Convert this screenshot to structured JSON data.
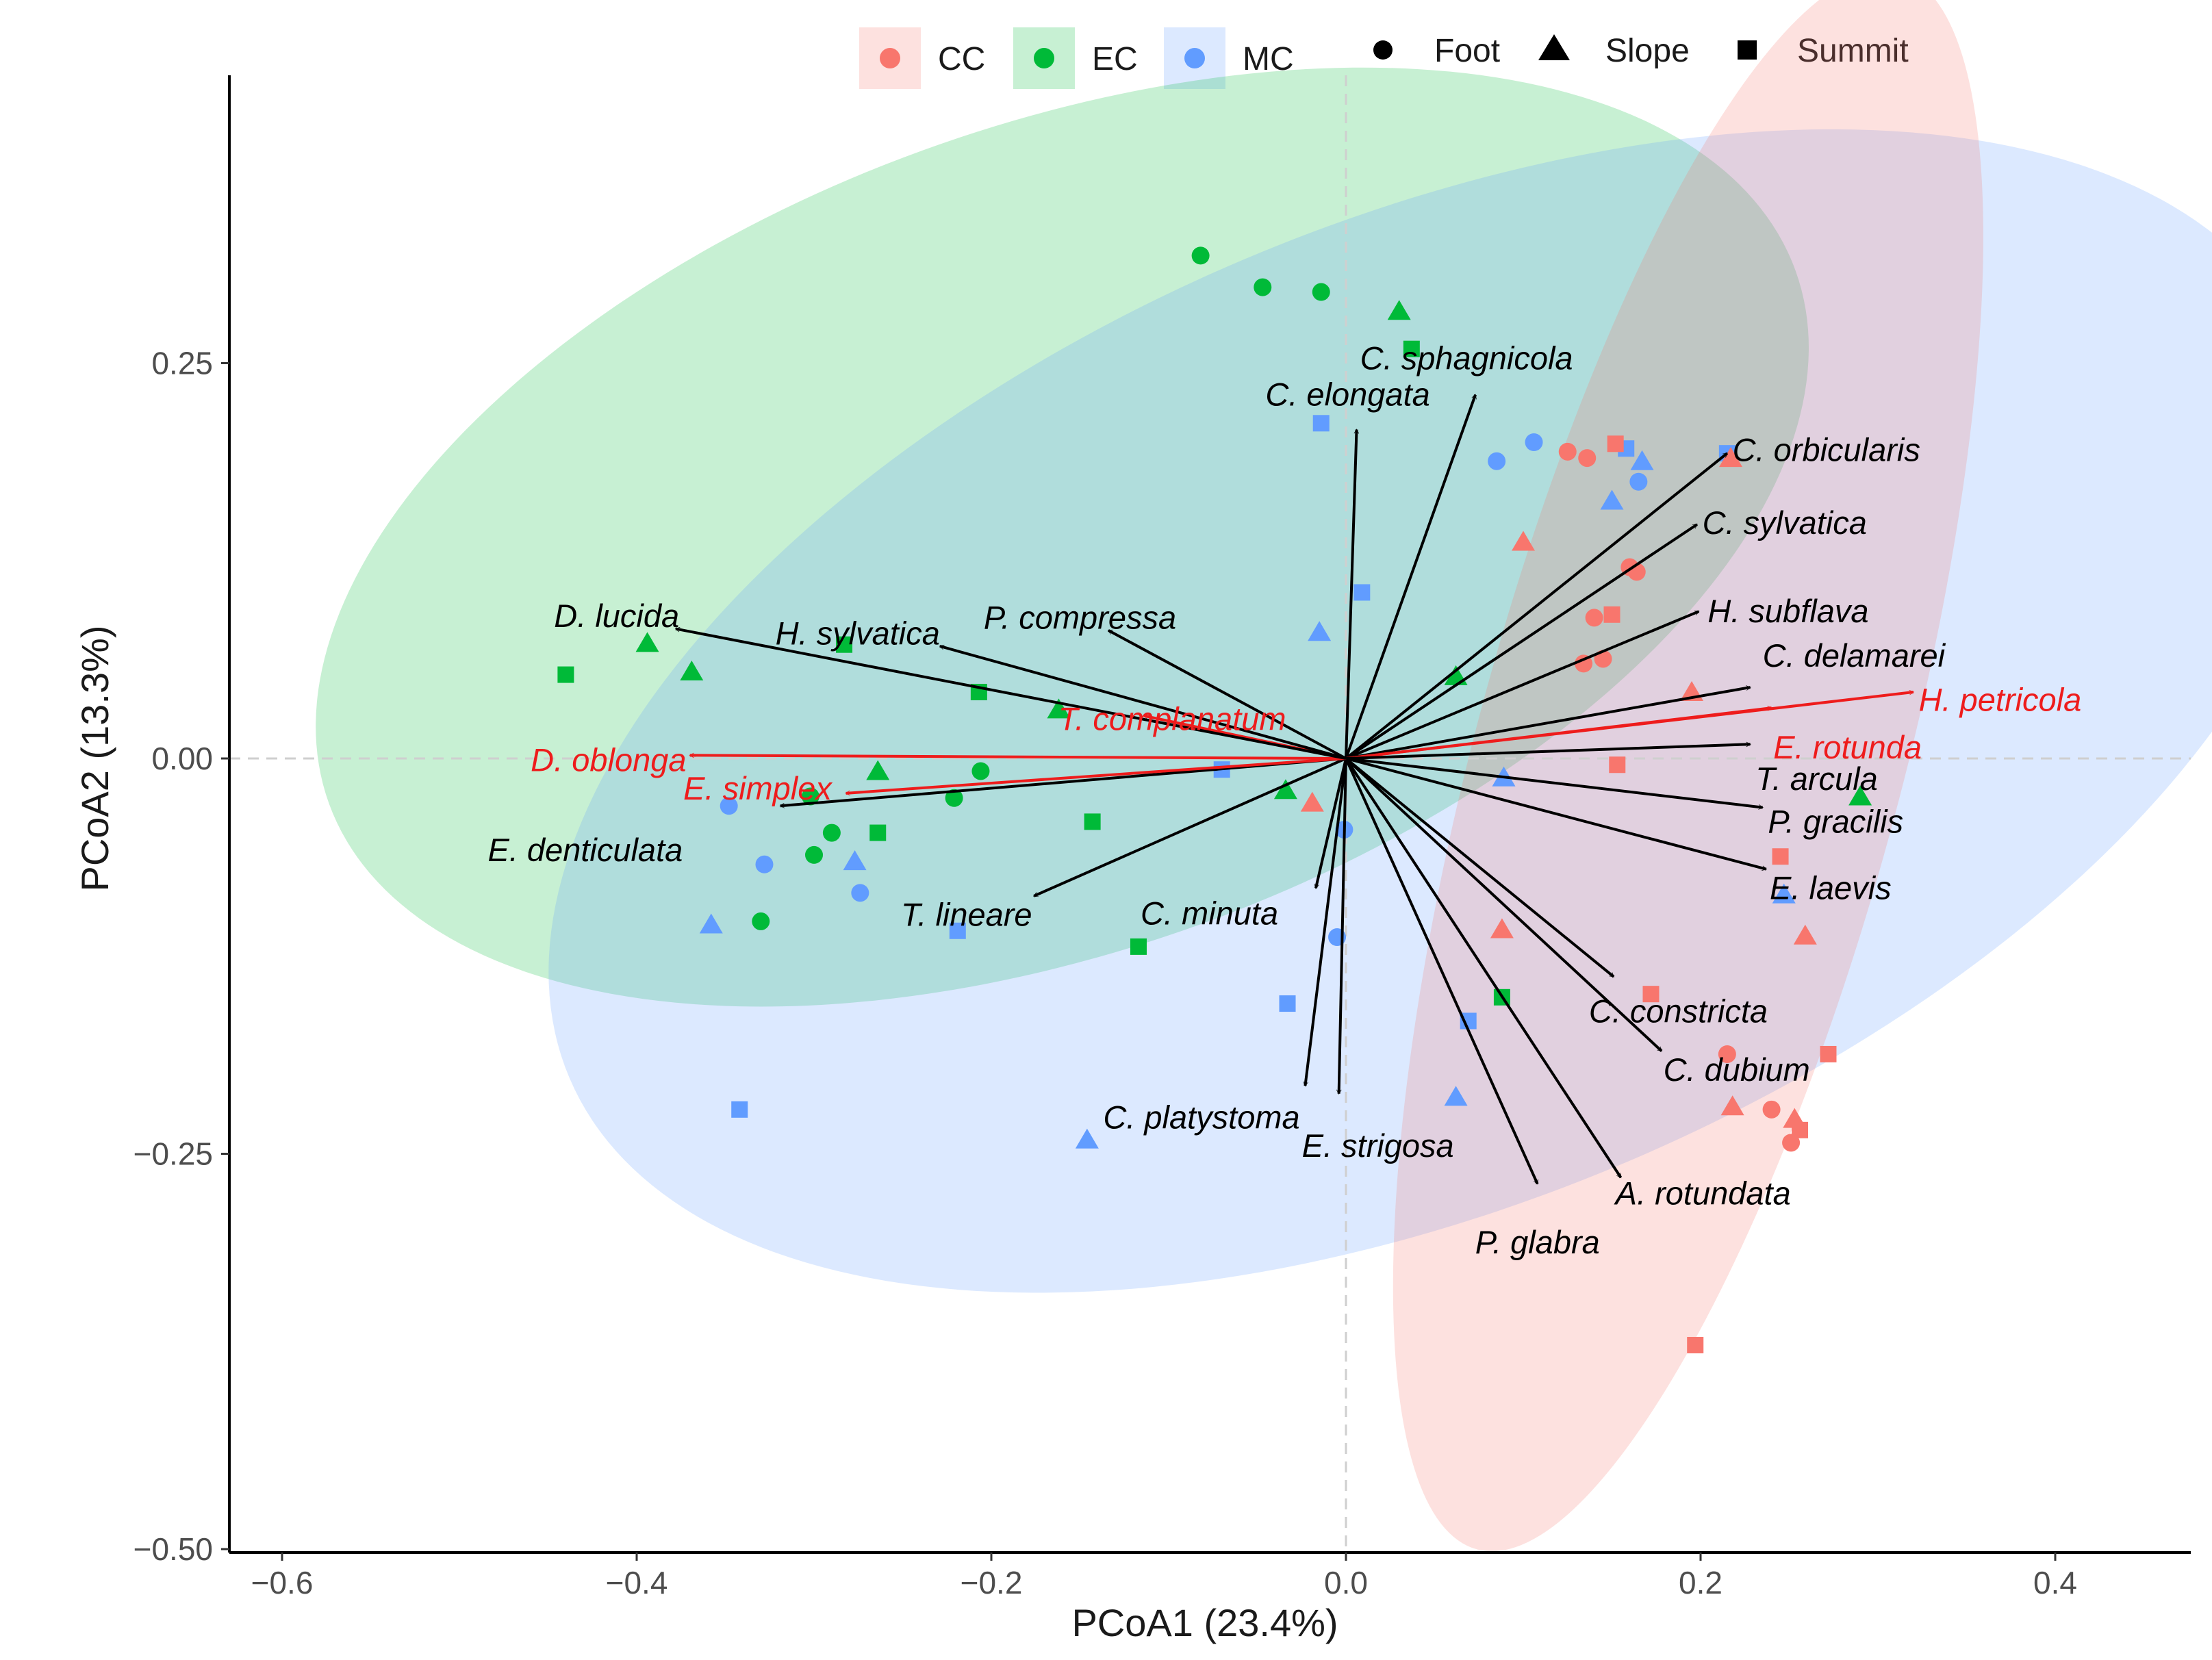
{
  "chart_data": {
    "type": "scatter",
    "subtype": "PCoA biplot with group ellipses and species vectors",
    "title": "",
    "xlabel": "PCoA1 (23.4%)",
    "ylabel": "PCoA2 (13.3%)",
    "xlim": [
      -0.625,
      0.475
    ],
    "ylim": [
      -0.505,
      0.43
    ],
    "xticks": [
      -0.6,
      -0.4,
      -0.2,
      0.0,
      0.2,
      0.4
    ],
    "xtick_labels": [
      "−0.6",
      "−0.4",
      "−0.2",
      "0.0",
      "0.2",
      "0.4"
    ],
    "yticks": [
      0.25,
      0.0,
      -0.25,
      -0.5
    ],
    "ytick_labels": [
      "0.25",
      "0.00",
      "−0.25",
      "−0.50"
    ],
    "reference_lines": {
      "x": 0,
      "y": 0,
      "style": "dashed"
    },
    "legend": {
      "position": "top",
      "groups": [
        {
          "name": "CC",
          "color": "#F8766D"
        },
        {
          "name": "EC",
          "color": "#00BA38"
        },
        {
          "name": "MC",
          "color": "#619CFF"
        }
      ],
      "shapes": [
        {
          "name": "Foot",
          "shape": "circle"
        },
        {
          "name": "Slope",
          "shape": "triangle"
        },
        {
          "name": "Summit",
          "shape": "square"
        }
      ]
    },
    "ellipses": [
      {
        "group": "EC",
        "center": [
          -0.16,
          0.14
        ],
        "semi_axes": [
          0.44,
          0.26
        ],
        "angle_deg": 20
      },
      {
        "group": "MC",
        "center": [
          0.05,
          0.03
        ],
        "semi_axes": [
          0.53,
          0.31
        ],
        "angle_deg": 23
      },
      {
        "group": "CC",
        "center": [
          0.193,
          -0.002
        ],
        "semi_axes": [
          0.46,
          0.135
        ],
        "angle_deg": 75
      }
    ],
    "points": [
      {
        "group": "EC",
        "shape": "Foot",
        "x": -0.082,
        "y": 0.318
      },
      {
        "group": "EC",
        "shape": "Foot",
        "x": -0.047,
        "y": 0.298
      },
      {
        "group": "EC",
        "shape": "Foot",
        "x": -0.014,
        "y": 0.295
      },
      {
        "group": "EC",
        "shape": "Slope",
        "x": 0.03,
        "y": 0.283
      },
      {
        "group": "EC",
        "shape": "Summit",
        "x": 0.037,
        "y": 0.259
      },
      {
        "group": "EC",
        "shape": "Summit",
        "x": -0.44,
        "y": 0.053
      },
      {
        "group": "EC",
        "shape": "Slope",
        "x": -0.394,
        "y": 0.073
      },
      {
        "group": "EC",
        "shape": "Slope",
        "x": -0.369,
        "y": 0.055
      },
      {
        "group": "EC",
        "shape": "Summit",
        "x": -0.283,
        "y": 0.072
      },
      {
        "group": "EC",
        "shape": "Summit",
        "x": -0.207,
        "y": 0.042
      },
      {
        "group": "EC",
        "shape": "Slope",
        "x": -0.162,
        "y": 0.031
      },
      {
        "group": "EC",
        "shape": "Slope",
        "x": 0.062,
        "y": 0.052
      },
      {
        "group": "EC",
        "shape": "Slope",
        "x": -0.264,
        "y": -0.008
      },
      {
        "group": "EC",
        "shape": "Foot",
        "x": -0.206,
        "y": -0.008
      },
      {
        "group": "EC",
        "shape": "Foot",
        "x": -0.302,
        "y": -0.024
      },
      {
        "group": "EC",
        "shape": "Foot",
        "x": -0.221,
        "y": -0.025
      },
      {
        "group": "EC",
        "shape": "Foot",
        "x": -0.29,
        "y": -0.047
      },
      {
        "group": "EC",
        "shape": "Summit",
        "x": -0.264,
        "y": -0.047
      },
      {
        "group": "EC",
        "shape": "Foot",
        "x": -0.3,
        "y": -0.061
      },
      {
        "group": "EC",
        "shape": "Summit",
        "x": -0.143,
        "y": -0.04
      },
      {
        "group": "EC",
        "shape": "Slope",
        "x": -0.034,
        "y": -0.02
      },
      {
        "group": "EC",
        "shape": "Foot",
        "x": -0.33,
        "y": -0.103
      },
      {
        "group": "EC",
        "shape": "Summit",
        "x": -0.117,
        "y": -0.119
      },
      {
        "group": "EC",
        "shape": "Summit",
        "x": 0.088,
        "y": -0.151
      },
      {
        "group": "EC",
        "shape": "Slope",
        "x": 0.29,
        "y": -0.024
      },
      {
        "group": "MC",
        "shape": "Summit",
        "x": -0.014,
        "y": 0.212
      },
      {
        "group": "MC",
        "shape": "Summit",
        "x": 0.009,
        "y": 0.105
      },
      {
        "group": "MC",
        "shape": "Slope",
        "x": -0.015,
        "y": 0.08
      },
      {
        "group": "MC",
        "shape": "Foot",
        "x": 0.085,
        "y": 0.188
      },
      {
        "group": "MC",
        "shape": "Foot",
        "x": 0.106,
        "y": 0.2
      },
      {
        "group": "MC",
        "shape": "Summit",
        "x": 0.158,
        "y": 0.196
      },
      {
        "group": "MC",
        "shape": "Slope",
        "x": 0.167,
        "y": 0.188
      },
      {
        "group": "MC",
        "shape": "Foot",
        "x": 0.165,
        "y": 0.175
      },
      {
        "group": "MC",
        "shape": "Slope",
        "x": 0.15,
        "y": 0.163
      },
      {
        "group": "MC",
        "shape": "Summit",
        "x": 0.215,
        "y": 0.193
      },
      {
        "group": "MC",
        "shape": "Summit",
        "x": -0.07,
        "y": -0.007
      },
      {
        "group": "MC",
        "shape": "Slope",
        "x": 0.089,
        "y": -0.012
      },
      {
        "group": "MC",
        "shape": "Foot",
        "x": -0.348,
        "y": -0.03
      },
      {
        "group": "MC",
        "shape": "Foot",
        "x": -0.328,
        "y": -0.067
      },
      {
        "group": "MC",
        "shape": "Slope",
        "x": -0.277,
        "y": -0.065
      },
      {
        "group": "MC",
        "shape": "Foot",
        "x": -0.274,
        "y": -0.085
      },
      {
        "group": "MC",
        "shape": "Slope",
        "x": -0.358,
        "y": -0.105
      },
      {
        "group": "MC",
        "shape": "Summit",
        "x": -0.219,
        "y": -0.109
      },
      {
        "group": "MC",
        "shape": "Foot",
        "x": -0.001,
        "y": -0.045
      },
      {
        "group": "MC",
        "shape": "Foot",
        "x": -0.005,
        "y": -0.113
      },
      {
        "group": "MC",
        "shape": "Summit",
        "x": -0.033,
        "y": -0.155
      },
      {
        "group": "MC",
        "shape": "Summit",
        "x": 0.069,
        "y": -0.166
      },
      {
        "group": "MC",
        "shape": "Slope",
        "x": 0.062,
        "y": -0.214
      },
      {
        "group": "MC",
        "shape": "Summit",
        "x": -0.342,
        "y": -0.222
      },
      {
        "group": "MC",
        "shape": "Slope",
        "x": -0.146,
        "y": -0.241
      },
      {
        "group": "MC",
        "shape": "Slope",
        "x": 0.247,
        "y": -0.086
      },
      {
        "group": "CC",
        "shape": "Foot",
        "x": 0.125,
        "y": 0.194
      },
      {
        "group": "CC",
        "shape": "Foot",
        "x": 0.136,
        "y": 0.19
      },
      {
        "group": "CC",
        "shape": "Summit",
        "x": 0.152,
        "y": 0.199
      },
      {
        "group": "CC",
        "shape": "Slope",
        "x": 0.217,
        "y": 0.19
      },
      {
        "group": "CC",
        "shape": "Slope",
        "x": 0.1,
        "y": 0.137
      },
      {
        "group": "CC",
        "shape": "Foot",
        "x": 0.16,
        "y": 0.121
      },
      {
        "group": "CC",
        "shape": "Foot",
        "x": 0.164,
        "y": 0.118
      },
      {
        "group": "CC",
        "shape": "Foot",
        "x": 0.14,
        "y": 0.089
      },
      {
        "group": "CC",
        "shape": "Summit",
        "x": 0.15,
        "y": 0.091
      },
      {
        "group": "CC",
        "shape": "Foot",
        "x": 0.134,
        "y": 0.06
      },
      {
        "group": "CC",
        "shape": "Foot",
        "x": 0.145,
        "y": 0.063
      },
      {
        "group": "CC",
        "shape": "Slope",
        "x": 0.195,
        "y": 0.042
      },
      {
        "group": "CC",
        "shape": "Summit",
        "x": 0.153,
        "y": -0.004
      },
      {
        "group": "CC",
        "shape": "Slope",
        "x": -0.019,
        "y": -0.028
      },
      {
        "group": "CC",
        "shape": "Summit",
        "x": 0.245,
        "y": -0.062
      },
      {
        "group": "CC",
        "shape": "Slope",
        "x": 0.088,
        "y": -0.108
      },
      {
        "group": "CC",
        "shape": "Slope",
        "x": 0.259,
        "y": -0.112
      },
      {
        "group": "CC",
        "shape": "Summit",
        "x": 0.172,
        "y": -0.149
      },
      {
        "group": "CC",
        "shape": "Foot",
        "x": 0.215,
        "y": -0.187
      },
      {
        "group": "CC",
        "shape": "Summit",
        "x": 0.272,
        "y": -0.187
      },
      {
        "group": "CC",
        "shape": "Slope",
        "x": 0.218,
        "y": -0.22
      },
      {
        "group": "CC",
        "shape": "Foot",
        "x": 0.24,
        "y": -0.222
      },
      {
        "group": "CC",
        "shape": "Slope",
        "x": 0.253,
        "y": -0.228
      },
      {
        "group": "CC",
        "shape": "Summit",
        "x": 0.256,
        "y": -0.235
      },
      {
        "group": "CC",
        "shape": "Foot",
        "x": 0.251,
        "y": -0.243
      },
      {
        "group": "CC",
        "shape": "Summit",
        "x": 0.197,
        "y": -0.371
      }
    ],
    "vectors": [
      {
        "label": "C. sphagnicola",
        "x": 0.073,
        "y": 0.23,
        "color": "#000000"
      },
      {
        "label": "C. elongata",
        "x": 0.006,
        "y": 0.208,
        "color": "#000000"
      },
      {
        "label": "C. orbicularis",
        "x": 0.215,
        "y": 0.193,
        "color": "#000000"
      },
      {
        "label": "C. sylvatica",
        "x": 0.198,
        "y": 0.148,
        "color": "#000000"
      },
      {
        "label": "H. subflava",
        "x": 0.199,
        "y": 0.093,
        "color": "#000000"
      },
      {
        "label": "C. delamarei",
        "x": 0.228,
        "y": 0.045,
        "color": "#000000"
      },
      {
        "label": "H. petricola",
        "x": 0.32,
        "y": 0.042,
        "color": "#ee1c1c"
      },
      {
        "label": "E. rotunda",
        "x": 0.24,
        "y": 0.032,
        "color": "#ee1c1c"
      },
      {
        "label": "T. arcula",
        "x": 0.228,
        "y": 0.009,
        "color": "#000000"
      },
      {
        "label": "P. gracilis",
        "x": 0.235,
        "y": -0.031,
        "color": "#000000"
      },
      {
        "label": "E. laevis",
        "x": 0.237,
        "y": -0.07,
        "color": "#000000"
      },
      {
        "label": "C. constricta",
        "x": 0.151,
        "y": -0.138,
        "color": "#000000"
      },
      {
        "label": "C. dubium",
        "x": 0.178,
        "y": -0.185,
        "color": "#000000"
      },
      {
        "label": "A. rotundata",
        "x": 0.155,
        "y": -0.265,
        "color": "#000000"
      },
      {
        "label": "P. glabra",
        "x": 0.108,
        "y": -0.269,
        "color": "#000000"
      },
      {
        "label": "E. strigosa",
        "x": -0.004,
        "y": -0.212,
        "color": "#000000"
      },
      {
        "label": "C. platystoma",
        "x": -0.023,
        "y": -0.207,
        "color": "#000000"
      },
      {
        "label": "C. minuta",
        "x": -0.017,
        "y": -0.082,
        "color": "#000000"
      },
      {
        "label": "T. lineare",
        "x": -0.176,
        "y": -0.087,
        "color": "#000000"
      },
      {
        "label": "E. denticulata",
        "x": -0.319,
        "y": -0.03,
        "color": "#000000"
      },
      {
        "label": "E. simplex",
        "x": -0.282,
        "y": -0.022,
        "color": "#ee1c1c"
      },
      {
        "label": "D. oblonga",
        "x": -0.37,
        "y": 0.002,
        "color": "#ee1c1c"
      },
      {
        "label": "T. complanatum",
        "x": -0.114,
        "y": 0.027,
        "color": "#ee1c1c"
      },
      {
        "label": "D. lucida",
        "x": -0.378,
        "y": 0.082,
        "color": "#000000"
      },
      {
        "label": "H. sylvatica",
        "x": -0.229,
        "y": 0.071,
        "color": "#000000"
      },
      {
        "label": "P. compressa",
        "x": -0.134,
        "y": 0.081,
        "color": "#000000"
      }
    ]
  }
}
